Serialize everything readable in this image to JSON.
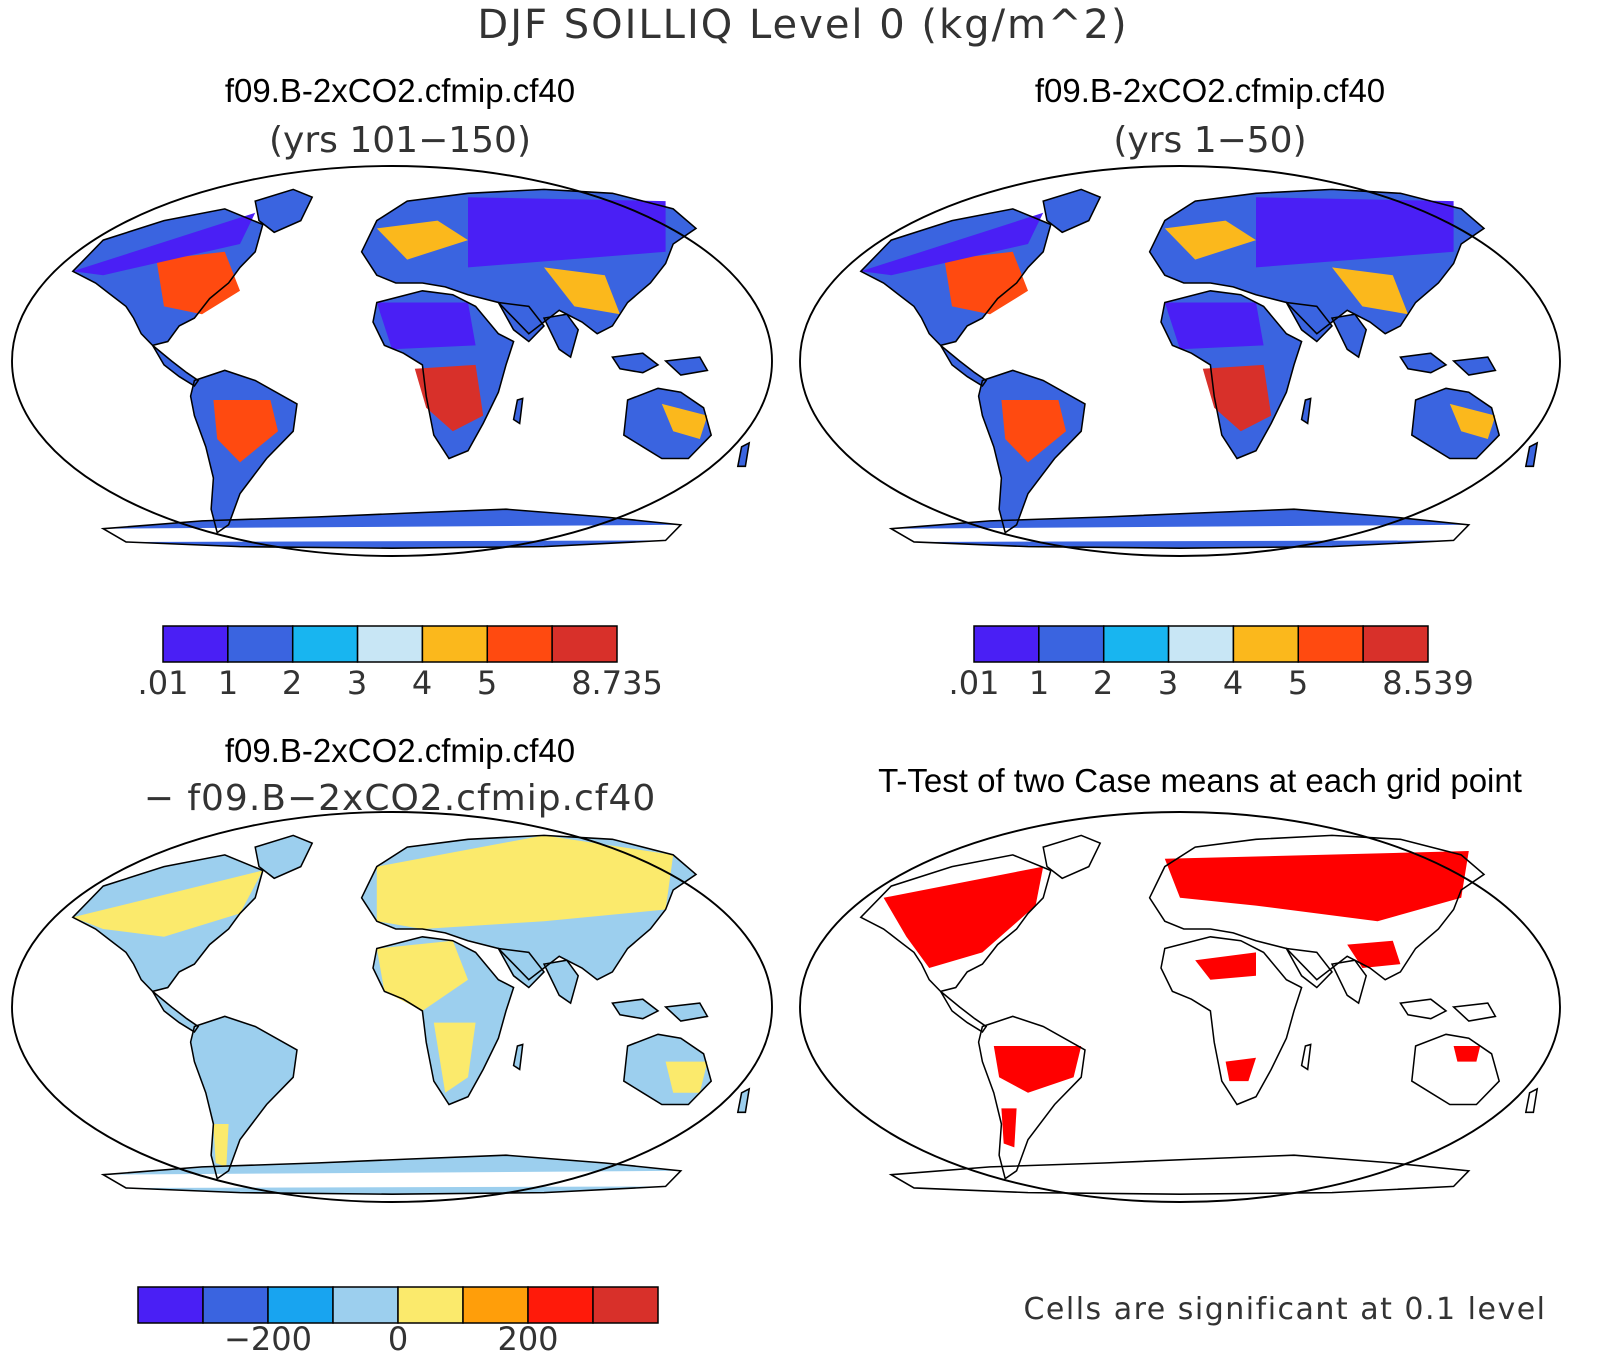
{
  "main_title": "DJF SOILLIQ Level 0 (kg/m^2)",
  "colors": {
    "ocean": "#ffffff",
    "coast": "#000000",
    "seq": [
      "#4a1ff5",
      "#3a64e0",
      "#18b5f0",
      "#c8e6f5",
      "#fbb81c",
      "#ff4a10",
      "#d8302a"
    ],
    "diff": [
      "#4a1ff5",
      "#3a64e0",
      "#18a4f0",
      "#9ccfee",
      "#fbea6c",
      "#ff9e0a",
      "#ff1a0a",
      "#d8302a"
    ],
    "signif": "#ff0000"
  },
  "panels": [
    {
      "title": "f09.B-2xCO2.cfmip.cf40",
      "subtitle": "(yrs 101−150)",
      "colorbar_ticks": [
        ".01",
        "1",
        "2",
        "3",
        "4",
        "5",
        "8.735"
      ]
    },
    {
      "title": "f09.B-2xCO2.cfmip.cf40",
      "subtitle": "(yrs 1−50)",
      "colorbar_ticks": [
        ".01",
        "1",
        "2",
        "3",
        "4",
        "5",
        "8.539"
      ]
    },
    {
      "title": "f09.B-2xCO2.cfmip.cf40",
      "subtitle": "− f09.B−2xCO2.cfmip.cf40",
      "colorbar_ticks": [
        "−200",
        "0",
        "200"
      ]
    },
    {
      "title": "T-Test of two Case means at each grid point",
      "footnote": "Cells are significant at 0.1 level"
    }
  ]
}
